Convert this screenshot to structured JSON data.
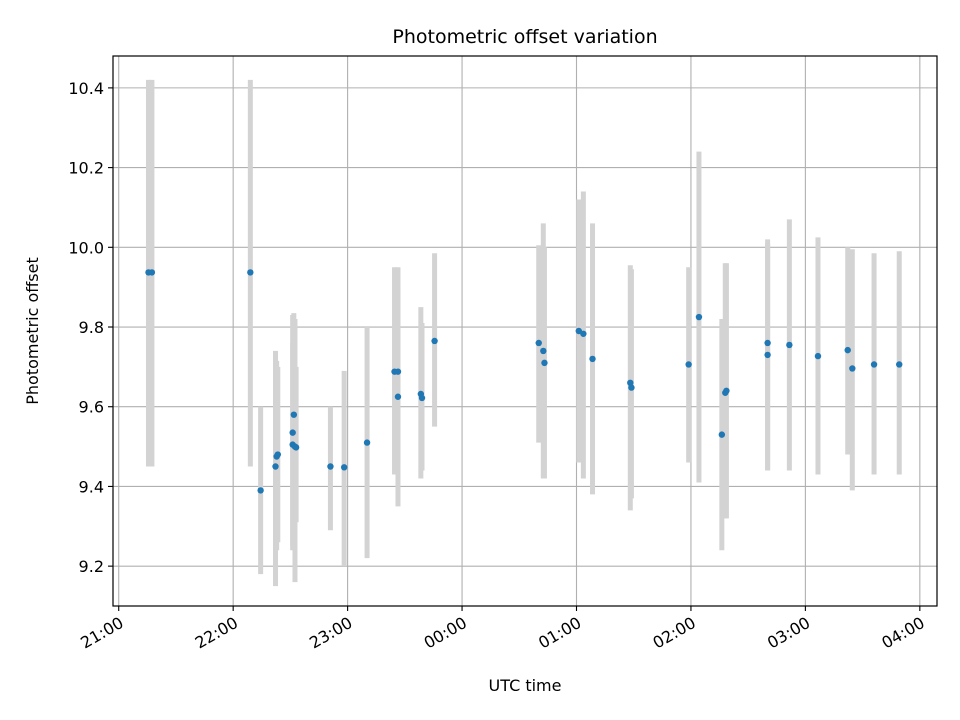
{
  "chart_data": {
    "type": "scatter",
    "title": "Photometric offset variation",
    "xlabel": "UTC time",
    "ylabel": "Photometric offset",
    "x_unit": "UTC time (hours past midnight; 21:00 = -3, 04:00 = 4)",
    "xlim": [
      -3.05,
      4.15
    ],
    "ylim": [
      9.1,
      10.48
    ],
    "x_ticks": [
      -3,
      -2,
      -1,
      0,
      1,
      2,
      3,
      4
    ],
    "x_tick_labels": [
      "21:00",
      "22:00",
      "23:00",
      "00:00",
      "01:00",
      "02:00",
      "03:00",
      "04:00"
    ],
    "y_ticks": [
      9.2,
      9.4,
      9.6,
      9.8,
      10.0,
      10.2,
      10.4
    ],
    "y_tick_labels": [
      "9.2",
      "9.4",
      "9.6",
      "9.8",
      "10.0",
      "10.2",
      "10.4"
    ],
    "grid": true,
    "point_color": "#1f77b4",
    "errorbar_color": "#d3d3d3",
    "points": [
      {
        "x": -2.74,
        "y": 9.937,
        "ylow": 9.45,
        "yhigh": 10.42
      },
      {
        "x": -2.71,
        "y": 9.937,
        "ylow": 9.45,
        "yhigh": 10.42
      },
      {
        "x": -1.85,
        "y": 9.937,
        "ylow": 9.45,
        "yhigh": 10.42
      },
      {
        "x": -1.76,
        "y": 9.39,
        "ylow": 9.18,
        "yhigh": 9.6
      },
      {
        "x": -1.63,
        "y": 9.45,
        "ylow": 9.15,
        "yhigh": 9.74
      },
      {
        "x": -1.62,
        "y": 9.475,
        "ylow": 9.24,
        "yhigh": 9.715
      },
      {
        "x": -1.61,
        "y": 9.48,
        "ylow": 9.26,
        "yhigh": 9.7
      },
      {
        "x": -1.48,
        "y": 9.535,
        "ylow": 9.24,
        "yhigh": 9.83
      },
      {
        "x": -1.47,
        "y": 9.58,
        "ylow": 9.33,
        "yhigh": 9.835
      },
      {
        "x": -1.48,
        "y": 9.505,
        "ylow": 9.25,
        "yhigh": 9.76
      },
      {
        "x": -1.46,
        "y": 9.5,
        "ylow": 9.16,
        "yhigh": 9.82
      },
      {
        "x": -1.45,
        "y": 9.498,
        "ylow": 9.31,
        "yhigh": 9.7
      },
      {
        "x": -1.15,
        "y": 9.45,
        "ylow": 9.29,
        "yhigh": 9.6
      },
      {
        "x": -1.03,
        "y": 9.448,
        "ylow": 9.2,
        "yhigh": 9.69
      },
      {
        "x": -0.83,
        "y": 9.51,
        "ylow": 9.22,
        "yhigh": 9.8
      },
      {
        "x": -0.59,
        "y": 9.688,
        "ylow": 9.43,
        "yhigh": 9.95
      },
      {
        "x": -0.56,
        "y": 9.688,
        "ylow": 9.45,
        "yhigh": 9.95
      },
      {
        "x": -0.56,
        "y": 9.625,
        "ylow": 9.35,
        "yhigh": 9.9
      },
      {
        "x": -0.36,
        "y": 9.632,
        "ylow": 9.42,
        "yhigh": 9.85
      },
      {
        "x": -0.35,
        "y": 9.622,
        "ylow": 9.44,
        "yhigh": 9.81
      },
      {
        "x": -0.24,
        "y": 9.765,
        "ylow": 9.55,
        "yhigh": 9.985
      },
      {
        "x": 0.67,
        "y": 9.76,
        "ylow": 9.51,
        "yhigh": 10.005
      },
      {
        "x": 0.71,
        "y": 9.74,
        "ylow": 9.42,
        "yhigh": 10.06
      },
      {
        "x": 0.72,
        "y": 9.71,
        "ylow": 9.42,
        "yhigh": 10.0
      },
      {
        "x": 1.02,
        "y": 9.79,
        "ylow": 9.46,
        "yhigh": 10.12
      },
      {
        "x": 1.06,
        "y": 9.783,
        "ylow": 9.42,
        "yhigh": 10.14
      },
      {
        "x": 1.14,
        "y": 9.72,
        "ylow": 9.38,
        "yhigh": 10.06
      },
      {
        "x": 1.47,
        "y": 9.66,
        "ylow": 9.34,
        "yhigh": 9.955
      },
      {
        "x": 1.48,
        "y": 9.648,
        "ylow": 9.37,
        "yhigh": 9.945
      },
      {
        "x": 1.98,
        "y": 9.706,
        "ylow": 9.46,
        "yhigh": 9.95
      },
      {
        "x": 2.07,
        "y": 9.825,
        "ylow": 9.41,
        "yhigh": 10.24
      },
      {
        "x": 2.27,
        "y": 9.53,
        "ylow": 9.24,
        "yhigh": 9.82
      },
      {
        "x": 2.3,
        "y": 9.635,
        "ylow": 9.32,
        "yhigh": 9.96
      },
      {
        "x": 2.31,
        "y": 9.64,
        "ylow": 9.32,
        "yhigh": 9.96
      },
      {
        "x": 2.67,
        "y": 9.76,
        "ylow": 9.44,
        "yhigh": 10.02
      },
      {
        "x": 2.67,
        "y": 9.73,
        "ylow": 9.44,
        "yhigh": 10.01
      },
      {
        "x": 2.86,
        "y": 9.755,
        "ylow": 9.44,
        "yhigh": 10.07
      },
      {
        "x": 3.11,
        "y": 9.727,
        "ylow": 9.43,
        "yhigh": 10.025
      },
      {
        "x": 3.37,
        "y": 9.742,
        "ylow": 9.48,
        "yhigh": 10.0
      },
      {
        "x": 3.41,
        "y": 9.696,
        "ylow": 9.39,
        "yhigh": 9.995
      },
      {
        "x": 3.6,
        "y": 9.706,
        "ylow": 9.43,
        "yhigh": 9.985
      },
      {
        "x": 3.82,
        "y": 9.706,
        "ylow": 9.43,
        "yhigh": 9.99
      }
    ]
  }
}
